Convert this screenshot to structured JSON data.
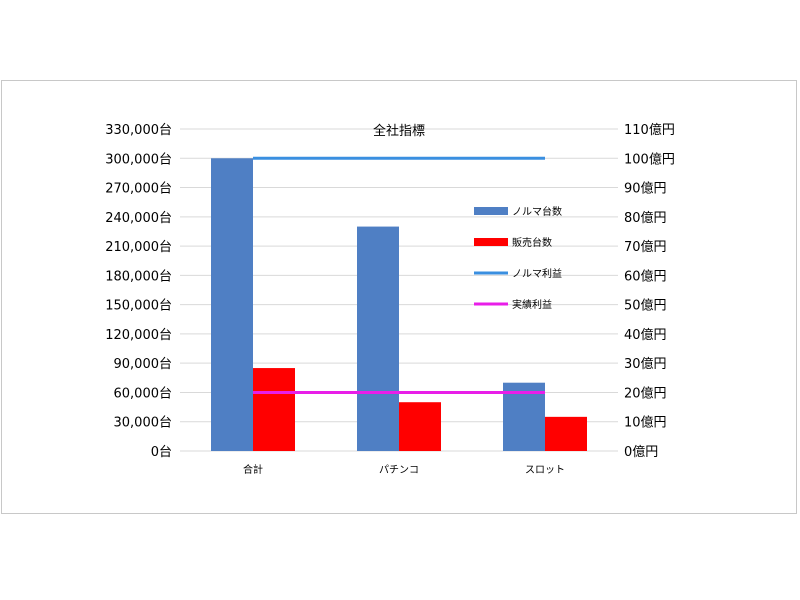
{
  "chart_data": {
    "type": "bar",
    "title": "全社指標",
    "categories": [
      "合計",
      "パチンコ",
      "スロット"
    ],
    "series": [
      {
        "name": "ノルマ台数",
        "kind": "bar",
        "axis": "left",
        "color": "#4f7fc4",
        "values": [
          300000,
          230000,
          70000
        ]
      },
      {
        "name": "販売台数",
        "kind": "bar",
        "axis": "left",
        "color": "#ff0000",
        "values": [
          85000,
          50000,
          35000
        ]
      },
      {
        "name": "ノルマ利益",
        "kind": "line",
        "axis": "right",
        "color": "#3a8fe0",
        "values": [
          100,
          100,
          100
        ]
      },
      {
        "name": "実績利益",
        "kind": "line",
        "axis": "right",
        "color": "#e81ee8",
        "values": [
          20,
          20,
          20
        ]
      }
    ],
    "y_left": {
      "ylim": [
        0,
        330000
      ],
      "ticks": [
        0,
        30000,
        60000,
        90000,
        120000,
        150000,
        180000,
        210000,
        240000,
        270000,
        300000,
        330000
      ],
      "tick_labels": [
        "0台",
        "30,000台",
        "60,000台",
        "90,000台",
        "120,000台",
        "150,000台",
        "180,000台",
        "210,000台",
        "240,000台",
        "270,000台",
        "300,000台",
        "330,000台"
      ]
    },
    "y_right": {
      "ylim": [
        0,
        110
      ],
      "ticks": [
        0,
        10,
        20,
        30,
        40,
        50,
        60,
        70,
        80,
        90,
        100,
        110
      ],
      "tick_labels": [
        "0億円",
        "10億円",
        "20億円",
        "30億円",
        "40億円",
        "50億円",
        "60億円",
        "70億円",
        "80億円",
        "90億円",
        "100億円",
        "110億円"
      ]
    },
    "grid": true,
    "legend_position": "right-inside"
  }
}
